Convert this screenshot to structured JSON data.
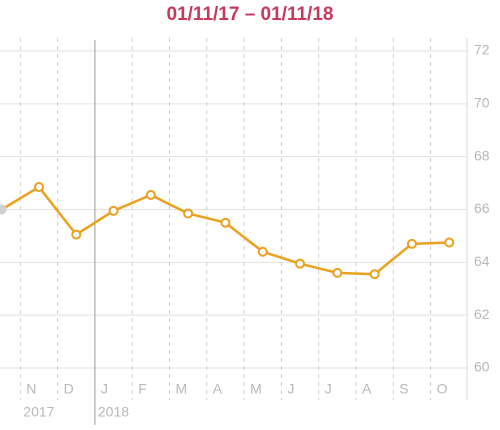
{
  "chart_data": {
    "type": "line",
    "title": "01/11/17 – 01/11/18",
    "categories": [
      null,
      "N",
      "D",
      "J",
      "F",
      "M",
      "A",
      "M",
      "J",
      "J",
      "A",
      "S",
      "O"
    ],
    "values": [
      66.0,
      66.85,
      65.05,
      65.95,
      66.55,
      65.85,
      65.5,
      64.4,
      63.95,
      63.6,
      63.55,
      64.7,
      64.75
    ],
    "color": "#e9a11f",
    "first_point_color": "#d0d0d0",
    "ylim": [
      60,
      72
    ],
    "yticks": [
      60,
      62,
      64,
      66,
      68,
      70,
      72
    ],
    "grid": true,
    "year_labels": [
      {
        "text": "2017",
        "at": 1
      },
      {
        "text": "2018",
        "at": 3
      }
    ]
  }
}
